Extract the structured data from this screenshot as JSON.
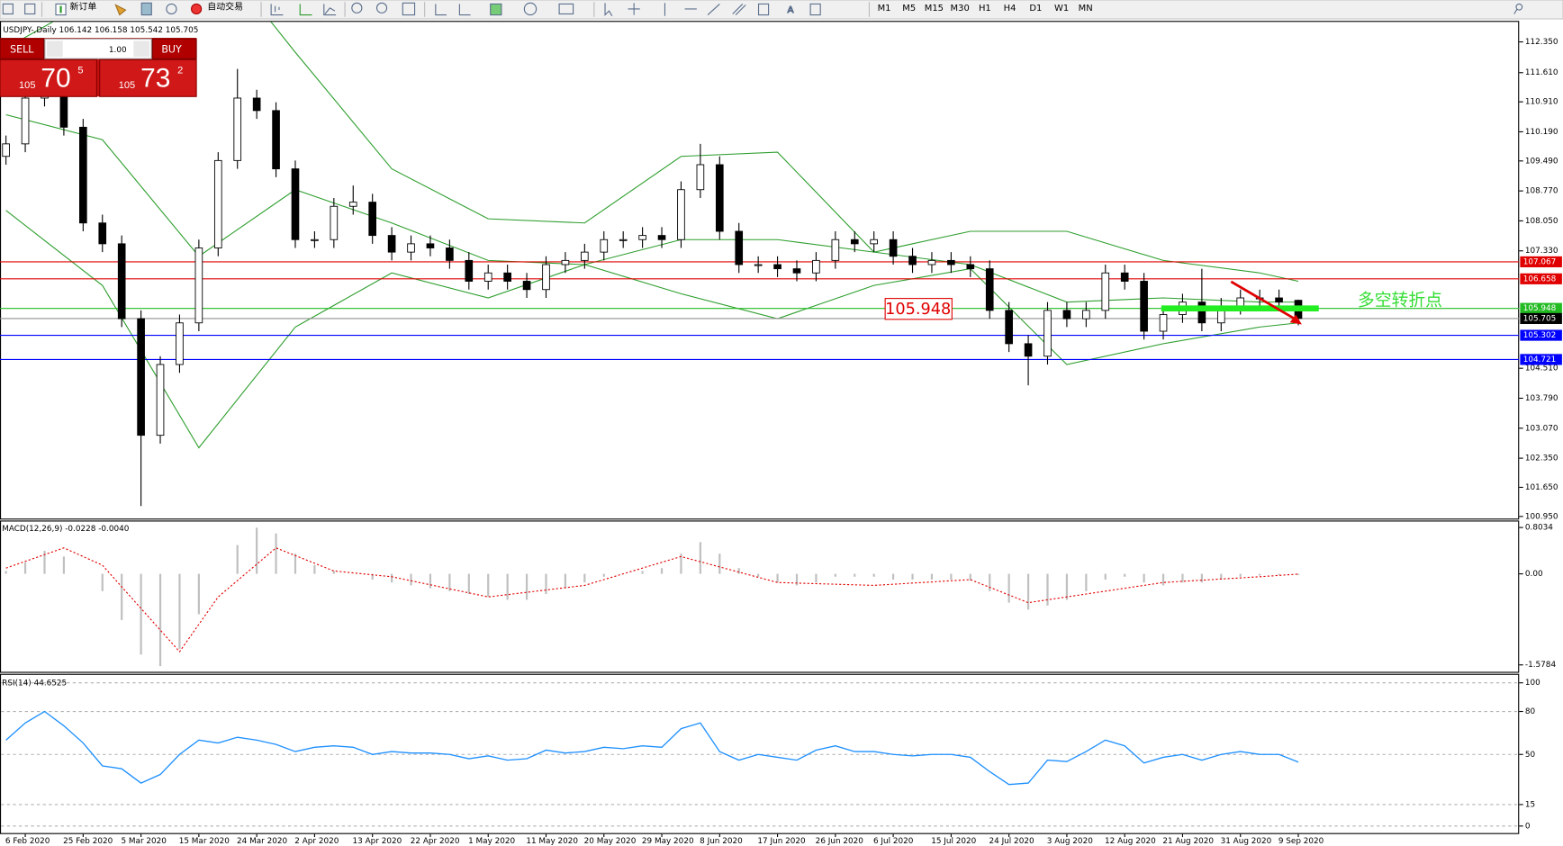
{
  "toolbar": {
    "new_order": "新订单",
    "auto_trading": "自动交易",
    "timeframes": [
      "M1",
      "M5",
      "M15",
      "M30",
      "H1",
      "H4",
      "D1",
      "W1",
      "MN"
    ]
  },
  "trade_panel": {
    "sell": "SELL",
    "buy": "BUY",
    "lot": "1.00",
    "bid": {
      "figure": "105",
      "pips": "70",
      "point": "5"
    },
    "ask": {
      "figure": "105",
      "pips": "73",
      "point": "2"
    }
  },
  "chart_data": [
    {
      "type": "candlestick",
      "title": "USDJPY-,Daily",
      "categories": [
        null,
        "6 Feb 2020",
        null,
        null,
        "25 Feb 2020",
        null,
        null,
        "5 Mar 2020",
        null,
        null,
        "15 Mar 2020",
        null,
        null,
        "24 Mar 2020",
        null,
        null,
        "2 Apr 2020",
        null,
        null,
        "13 Apr 2020",
        null,
        null,
        "22 Apr 2020",
        null,
        null,
        "1 May 2020",
        null,
        null,
        "11 May 2020",
        null,
        null,
        "20 May 2020",
        null,
        null,
        "29 May 2020",
        null,
        null,
        "8 Jun 2020",
        null,
        null,
        "17 Jun 2020",
        null,
        null,
        "26 Jun 2020",
        null,
        null,
        "6 Jul 2020",
        null,
        null,
        "15 Jul 2020",
        null,
        null,
        "24 Jul 2020",
        null,
        null,
        "3 Aug 2020",
        null,
        null,
        "12 Aug 2020",
        null,
        null,
        "21 Aug 2020",
        null,
        null,
        "31 Aug 2020",
        null,
        null,
        "9 Sep 2020"
      ],
      "open": [
        109.6,
        109.9,
        111.0,
        111.3,
        110.3,
        108.0,
        107.5,
        105.7,
        102.9,
        104.6,
        105.6,
        107.4,
        109.5,
        111.0,
        110.7,
        109.3,
        107.6,
        107.6,
        108.4,
        108.5,
        107.7,
        107.3,
        107.5,
        107.4,
        107.1,
        106.6,
        106.8,
        106.6,
        106.4,
        107.0,
        107.1,
        107.3,
        107.6,
        107.6,
        107.7,
        107.6,
        108.8,
        109.4,
        107.8,
        107.0,
        107.0,
        106.9,
        106.8,
        107.1,
        107.6,
        107.5,
        107.6,
        107.2,
        107.0,
        107.1,
        107.0,
        106.9,
        105.9,
        105.1,
        104.8,
        105.9,
        105.7,
        105.9,
        106.8,
        106.6,
        105.4,
        105.8,
        106.1,
        105.6,
        106.0,
        106.2,
        106.2,
        106.142
      ],
      "high": [
        110.1,
        111.2,
        111.5,
        111.5,
        110.5,
        108.2,
        107.7,
        105.9,
        104.8,
        105.8,
        107.6,
        109.7,
        111.7,
        111.2,
        110.9,
        109.5,
        107.8,
        108.6,
        108.9,
        108.7,
        107.9,
        107.7,
        107.7,
        107.6,
        107.3,
        107.0,
        107.0,
        106.8,
        107.2,
        107.3,
        107.5,
        107.8,
        107.8,
        107.9,
        107.9,
        109.0,
        109.9,
        109.6,
        108.0,
        107.2,
        107.2,
        107.1,
        107.3,
        107.8,
        107.8,
        107.8,
        107.8,
        107.4,
        107.3,
        107.3,
        107.2,
        107.1,
        106.1,
        105.3,
        106.1,
        106.1,
        106.1,
        107.0,
        107.0,
        106.8,
        106.0,
        106.3,
        106.9,
        106.2,
        106.4,
        106.4,
        106.4,
        106.158
      ],
      "low": [
        109.4,
        109.7,
        110.8,
        110.1,
        107.8,
        107.3,
        105.5,
        101.2,
        102.7,
        104.4,
        105.4,
        107.2,
        109.3,
        110.5,
        109.1,
        107.4,
        107.4,
        107.4,
        108.2,
        107.5,
        107.1,
        107.1,
        107.2,
        106.9,
        106.4,
        106.4,
        106.4,
        106.2,
        106.2,
        106.8,
        106.9,
        107.1,
        107.4,
        107.4,
        107.4,
        107.4,
        108.6,
        107.6,
        106.8,
        106.8,
        106.7,
        106.6,
        106.6,
        106.9,
        107.3,
        107.3,
        107.0,
        106.8,
        106.8,
        106.8,
        106.7,
        105.7,
        104.9,
        104.1,
        104.6,
        105.5,
        105.5,
        105.7,
        106.4,
        105.2,
        105.2,
        105.6,
        105.4,
        105.4,
        105.8,
        106.0,
        105.9,
        105.542
      ],
      "close": [
        109.9,
        111.0,
        111.3,
        110.3,
        108.0,
        107.5,
        105.7,
        102.9,
        104.6,
        105.6,
        107.4,
        109.5,
        111.0,
        110.7,
        109.3,
        107.6,
        107.6,
        108.4,
        108.5,
        107.7,
        107.3,
        107.5,
        107.4,
        107.1,
        106.6,
        106.8,
        106.6,
        106.4,
        107.0,
        107.1,
        107.3,
        107.6,
        107.6,
        107.7,
        107.6,
        108.8,
        109.4,
        107.8,
        107.0,
        107.0,
        106.9,
        106.8,
        107.1,
        107.6,
        107.5,
        107.6,
        107.2,
        107.0,
        107.1,
        107.0,
        106.9,
        105.9,
        105.1,
        104.8,
        105.9,
        105.7,
        105.9,
        106.8,
        106.6,
        105.4,
        105.8,
        106.1,
        105.6,
        106.0,
        106.2,
        106.2,
        106.1,
        105.705
      ],
      "bollinger": {
        "color": "#2e9e2e",
        "x": [
          0,
          5,
          10,
          15,
          20,
          25,
          30,
          35,
          40,
          45,
          50,
          55,
          60,
          65,
          67
        ],
        "upper": [
          112.2,
          113.5,
          115.0,
          112.1,
          109.3,
          108.1,
          108.0,
          109.6,
          109.7,
          107.3,
          107.8,
          107.8,
          107.1,
          106.8,
          106.6
        ],
        "middle": [
          110.6,
          110.0,
          107.2,
          108.8,
          108.0,
          107.1,
          107.0,
          107.6,
          107.6,
          107.3,
          107.0,
          106.1,
          106.2,
          106.1,
          106.1
        ],
        "lower": [
          108.3,
          106.5,
          102.6,
          105.5,
          106.8,
          106.2,
          107.0,
          106.3,
          105.7,
          106.5,
          106.9,
          104.6,
          105.1,
          105.5,
          105.6
        ]
      },
      "levels": [
        {
          "value": 107.067,
          "color": "#e00000"
        },
        {
          "value": 106.658,
          "color": "#e00000"
        },
        {
          "value": 105.948,
          "color": "#22bb22"
        },
        {
          "value": 105.302,
          "color": "#0000ff"
        },
        {
          "value": 104.721,
          "color": "#0000ff"
        }
      ],
      "current_color": "#909090",
      "annotation": {
        "text": "多空转折点",
        "color": "#33dd33"
      },
      "ylim": [
        100.9,
        112.83
      ],
      "yticks": [
        {
          "value": 112.35,
          "label": "112.350"
        },
        {
          "value": 111.61,
          "label": "111.610"
        },
        {
          "value": 110.91,
          "label": "110.910"
        },
        {
          "value": 110.19,
          "label": "110.190"
        },
        {
          "value": 109.49,
          "label": "109.490"
        },
        {
          "value": 108.77,
          "label": "108.770"
        },
        {
          "value": 108.05,
          "label": "108.050"
        },
        {
          "value": 107.33,
          "label": "107.330"
        },
        {
          "value": 104.51,
          "label": "104.510"
        },
        {
          "value": 103.79,
          "label": "103.790"
        },
        {
          "value": 103.07,
          "label": "103.070"
        },
        {
          "value": 102.35,
          "label": "102.350"
        },
        {
          "value": 101.65,
          "label": "101.650"
        },
        {
          "value": 100.95,
          "label": "100.950"
        }
      ]
    },
    {
      "type": "macd",
      "title": "MACD(12,26,9)",
      "color": "#c0c0c0",
      "signal_color": "#e00000",
      "values": [
        0.05,
        0.2,
        0.4,
        0.3,
        0.0,
        -0.3,
        -0.8,
        -1.4,
        -1.6,
        -1.3,
        -0.7,
        0.0,
        0.5,
        0.8,
        0.7,
        0.35,
        0.15,
        0.05,
        0.0,
        -0.1,
        -0.15,
        -0.2,
        -0.25,
        -0.3,
        -0.35,
        -0.4,
        -0.45,
        -0.45,
        -0.35,
        -0.25,
        -0.15,
        -0.05,
        0.0,
        0.05,
        0.1,
        0.35,
        0.55,
        0.35,
        0.1,
        -0.05,
        -0.15,
        -0.2,
        -0.15,
        -0.05,
        -0.05,
        -0.05,
        -0.1,
        -0.1,
        -0.1,
        -0.1,
        -0.12,
        -0.3,
        -0.5,
        -0.62,
        -0.55,
        -0.45,
        -0.3,
        -0.1,
        -0.05,
        -0.15,
        -0.2,
        -0.15,
        -0.15,
        -0.1,
        -0.05,
        -0.03,
        -0.02,
        -0.0228
      ],
      "signal": {
        "x": [
          0,
          3,
          5,
          7,
          9,
          11,
          14,
          17,
          20,
          25,
          30,
          35,
          40,
          45,
          50,
          53,
          57,
          60,
          65,
          67
        ],
        "values": [
          0.1,
          0.45,
          0.15,
          -0.6,
          -1.35,
          -0.4,
          0.45,
          0.05,
          -0.05,
          -0.4,
          -0.2,
          0.3,
          -0.15,
          -0.2,
          -0.1,
          -0.5,
          -0.3,
          -0.15,
          -0.05,
          -0.004
        ],
        "value_labels": [
          null,
          null,
          null,
          null,
          null,
          null,
          null,
          null,
          null,
          null,
          null,
          null,
          null,
          null,
          null,
          null,
          null,
          null,
          null,
          "-0.0040"
        ]
      },
      "ylim": [
        -1.716,
        0.907
      ],
      "yticks": [
        0.8034,
        {
          "value": 0,
          "label": "0.00"
        },
        -1.5784
      ]
    },
    {
      "type": "line",
      "title": "RSI(14)",
      "color": "#1e90ff",
      "values": [
        60,
        72,
        80,
        70,
        58,
        42,
        40,
        30,
        36,
        50,
        60,
        58,
        62,
        60,
        57,
        52,
        55,
        56,
        55,
        50,
        52,
        51,
        51,
        50,
        47,
        49,
        46,
        47,
        53,
        51,
        52,
        55,
        54,
        56,
        55,
        68,
        72,
        52,
        46,
        50,
        48,
        46,
        53,
        56,
        52,
        52,
        50,
        49,
        50,
        50,
        48,
        38,
        29,
        30,
        46,
        45,
        52,
        60,
        56,
        44,
        48,
        50,
        46,
        50,
        52,
        50,
        50,
        44.6525
      ],
      "ylim": [
        -5.6,
        105.6
      ],
      "yticks": [
        100,
        80,
        50,
        15,
        0
      ],
      "grid": true
    }
  ]
}
